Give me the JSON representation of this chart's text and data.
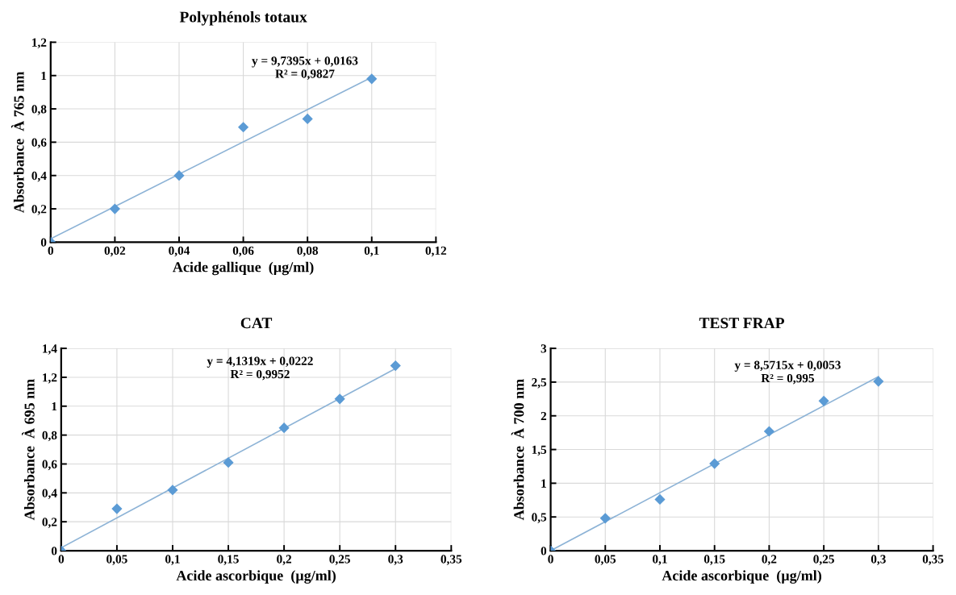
{
  "chart_data": [
    {
      "type": "scatter",
      "title": "Polyphénols totaux",
      "xlabel": "Acide gallique  (µg/ml)",
      "ylabel": "Absorbance  À 765 nm",
      "xlim": [
        0,
        0.12
      ],
      "ylim": [
        0,
        1.2
      ],
      "xticks": [
        0,
        {
          "value": 0.02,
          "label": "0,02"
        },
        {
          "value": 0.04,
          "label": "0,04"
        },
        {
          "value": 0.06,
          "label": "0,06"
        },
        {
          "value": 0.08,
          "label": "0,08"
        },
        {
          "value": 0.1,
          "label": "0,1"
        },
        {
          "value": 0.12,
          "label": "0,12"
        }
      ],
      "yticks": [
        0,
        {
          "value": 0.2,
          "label": "0,2"
        },
        {
          "value": 0.4,
          "label": "0,4"
        },
        {
          "value": 0.6,
          "label": "0,6"
        },
        {
          "value": 0.8,
          "label": "0,8"
        },
        1,
        {
          "value": 1.2,
          "label": "1,2"
        }
      ],
      "grid": true,
      "annotations": [
        "y = 9,7395x + 0,0163",
        "R² = 0,9827"
      ],
      "series": [
        {
          "marker": "diamond",
          "color": "#5b9bd5",
          "x": [
            0,
            0.02,
            0.04,
            0.06,
            0.08,
            0.1
          ],
          "values": [
            0,
            0.2,
            0.4,
            0.69,
            0.74,
            0.98
          ]
        },
        {
          "type": "line",
          "color": "#8db3d6",
          "x": [
            0,
            0.1
          ],
          "values": [
            0.02,
            0.99
          ]
        }
      ]
    },
    {
      "type": "scatter",
      "title": "CAT",
      "xlabel": "Acide ascorbique  (µg/ml)",
      "ylabel": "Absorbance  À 695 nm",
      "xlim": [
        0,
        0.35
      ],
      "ylim": [
        0,
        1.4
      ],
      "xticks": [
        0,
        {
          "value": 0.05,
          "label": "0,05"
        },
        {
          "value": 0.1,
          "label": "0,1"
        },
        {
          "value": 0.15,
          "label": "0,15"
        },
        {
          "value": 0.2,
          "label": "0,2"
        },
        {
          "value": 0.25,
          "label": "0,25"
        },
        {
          "value": 0.3,
          "label": "0,3"
        },
        {
          "value": 0.35,
          "label": "0,35"
        }
      ],
      "yticks": [
        0,
        {
          "value": 0.2,
          "label": "0,2"
        },
        {
          "value": 0.4,
          "label": "0,4"
        },
        {
          "value": 0.6,
          "label": "0,6"
        },
        {
          "value": 0.8,
          "label": "0,8"
        },
        1,
        {
          "value": 1.2,
          "label": "1,2"
        },
        {
          "value": 1.4,
          "label": "1,4"
        }
      ],
      "grid": true,
      "annotations": [
        "y = 4,1319x + 0,0222",
        "R² = 0,9952"
      ],
      "series": [
        {
          "marker": "diamond",
          "color": "#5b9bd5",
          "x": [
            0,
            0.05,
            0.1,
            0.15,
            0.2,
            0.25,
            0.3
          ],
          "values": [
            0,
            0.29,
            0.42,
            0.61,
            0.85,
            1.05,
            1.28
          ]
        },
        {
          "type": "line",
          "color": "#8db3d6",
          "x": [
            0,
            0.3
          ],
          "values": [
            0.02,
            1.26
          ]
        }
      ]
    },
    {
      "type": "scatter",
      "title": "TEST FRAP",
      "xlabel": "Acide ascorbique  (µg/ml)",
      "ylabel": "Absorbance  À 700 nm",
      "xlim": [
        0,
        0.35
      ],
      "ylim": [
        0,
        3
      ],
      "xticks": [
        0,
        {
          "value": 0.05,
          "label": "0,05"
        },
        {
          "value": 0.1,
          "label": "0,1"
        },
        {
          "value": 0.15,
          "label": "0,15"
        },
        {
          "value": 0.2,
          "label": "0,2"
        },
        {
          "value": 0.25,
          "label": "0,25"
        },
        {
          "value": 0.3,
          "label": "0,3"
        },
        {
          "value": 0.35,
          "label": "0,35"
        }
      ],
      "yticks": [
        0,
        {
          "value": 0.5,
          "label": "0,5"
        },
        1,
        {
          "value": 1.5,
          "label": "1,5"
        },
        2,
        {
          "value": 2.5,
          "label": "2,5"
        },
        3
      ],
      "grid": true,
      "annotations": [
        "y = 8,5715x + 0,0053",
        "R² = 0,995"
      ],
      "series": [
        {
          "marker": "diamond",
          "color": "#5b9bd5",
          "x": [
            0,
            0.05,
            0.1,
            0.15,
            0.2,
            0.25,
            0.3
          ],
          "values": [
            0,
            0.48,
            0.76,
            1.29,
            1.77,
            2.22,
            2.51
          ]
        },
        {
          "type": "line",
          "color": "#8db3d6",
          "x": [
            0,
            0.3
          ],
          "values": [
            0.0,
            2.58
          ]
        }
      ]
    }
  ]
}
